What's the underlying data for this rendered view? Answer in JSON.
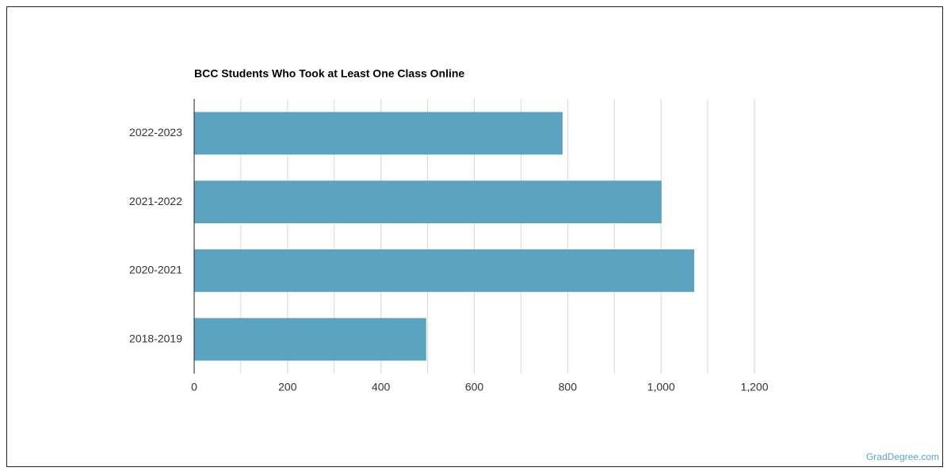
{
  "chart_data": {
    "type": "hbar",
    "title": "BCC Students Who Took at Least One Class Online",
    "categories": [
      "2022-2023",
      "2021-2022",
      "2020-2021",
      "2018-2019"
    ],
    "values": [
      789,
      1001,
      1071,
      497
    ],
    "color": "#5ba3bf",
    "xlim": [
      0,
      1200
    ],
    "xticks": [
      0,
      200,
      400,
      600,
      800,
      {
        "value": 1000,
        "label": "1,000"
      },
      {
        "value": 1200,
        "label": "1,200"
      }
    ],
    "minor_xticks": [
      100,
      300,
      500,
      700,
      900,
      1100
    ],
    "grid": true
  },
  "footer": {
    "source": "GradDegree.com"
  }
}
